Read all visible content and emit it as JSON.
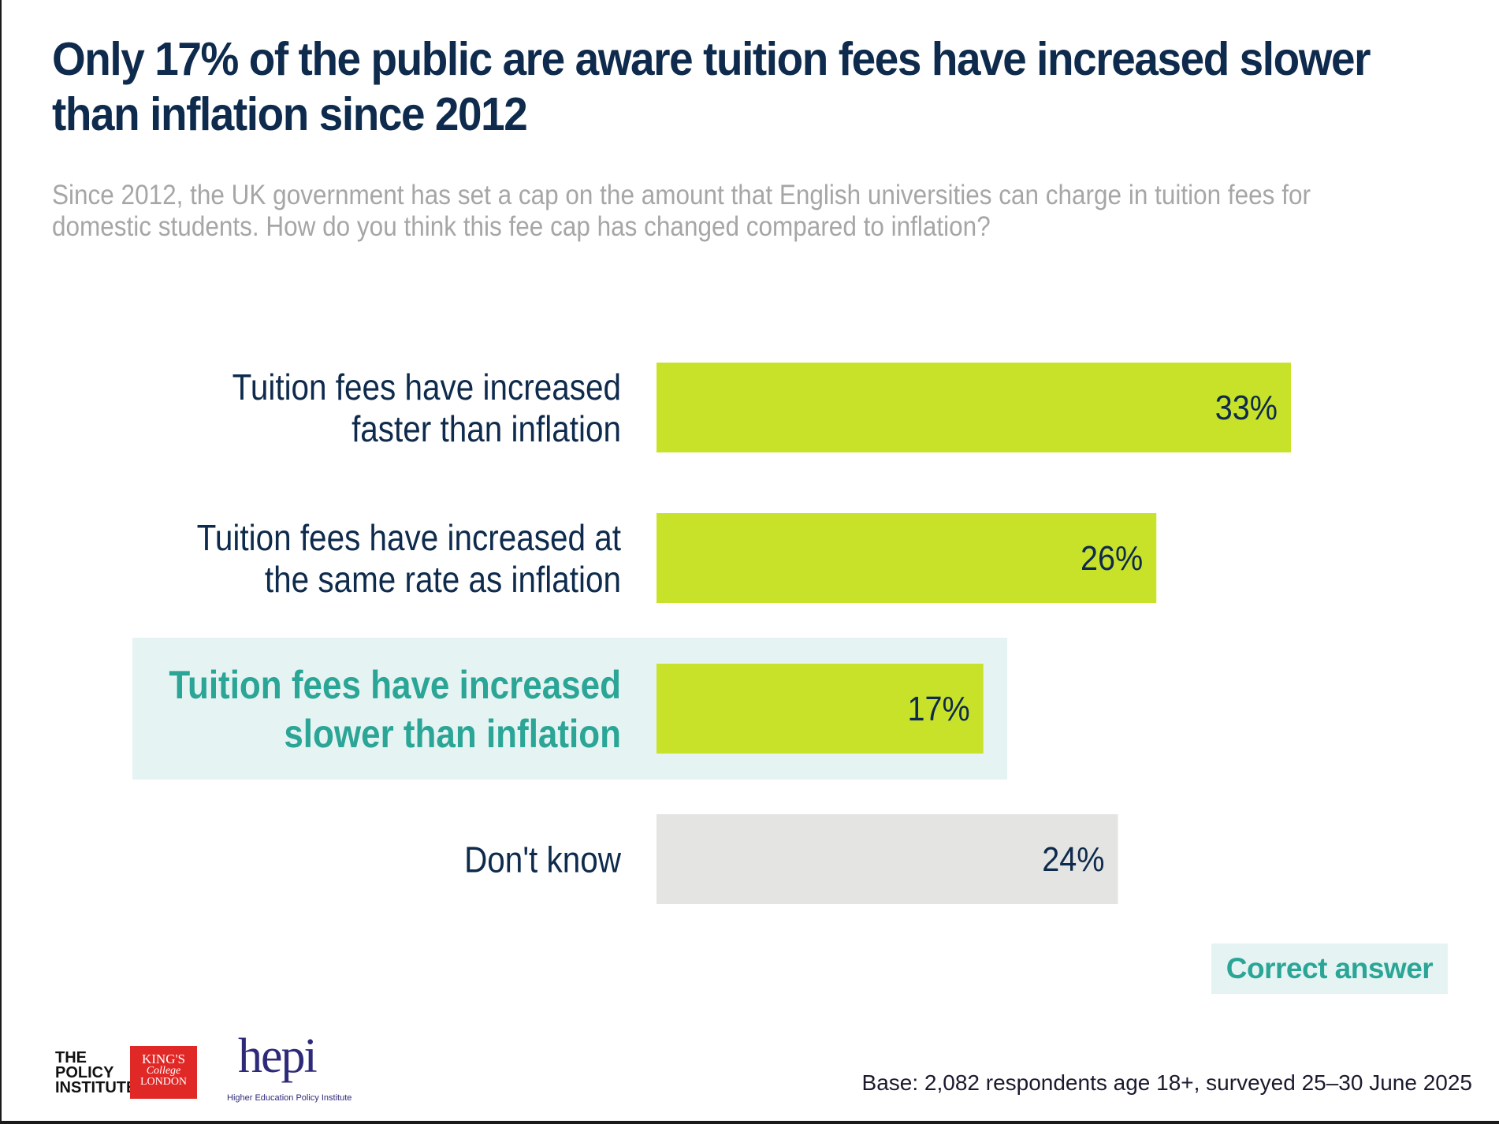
{
  "title": "Only 17% of the public are aware tuition fees have increased slower than inflation since 2012",
  "subtitle": "Since 2012, the UK government has set a cap on the amount that English universities can charge in tuition fees for domestic students. How do you think this fee cap has changed compared to inflation?",
  "legend": {
    "label": "Correct answer"
  },
  "base_note": "Base: 2,082 respondents age 18+, surveyed 25–30 June 2025",
  "logos": {
    "policy_institute": [
      "THE",
      "POLICY",
      "INSTITUTE"
    ],
    "kings_college": [
      "KING'S",
      "College",
      "LONDON"
    ],
    "hepi": "hepi",
    "hepi_sub": "Higher Education Policy Institute"
  },
  "colors": {
    "title": "#0e2a4c",
    "bar": "#c8e22a",
    "bar_dont_know": "#e4e4e2",
    "highlight_bg": "#e5f4f3",
    "correct_text": "#2aa596",
    "label_text": "#0e2a4c"
  },
  "chart_data": {
    "type": "bar",
    "orientation": "horizontal",
    "categories": [
      [
        "Tuition fees have increased",
        "faster than inflation"
      ],
      [
        "Tuition fees have increased at",
        "the same rate as inflation"
      ],
      [
        "Tuition fees have increased",
        "slower than inflation"
      ],
      [
        "Don't know"
      ]
    ],
    "values": [
      33,
      26,
      17,
      24
    ],
    "value_labels": [
      "33%",
      "26%",
      "17%",
      "24%"
    ],
    "highlighted": [
      false,
      false,
      true,
      false
    ],
    "bar_colors": [
      "#c8e22a",
      "#c8e22a",
      "#c8e22a",
      "#e4e4e2"
    ],
    "xlim": [
      0,
      33
    ],
    "grid": false
  }
}
